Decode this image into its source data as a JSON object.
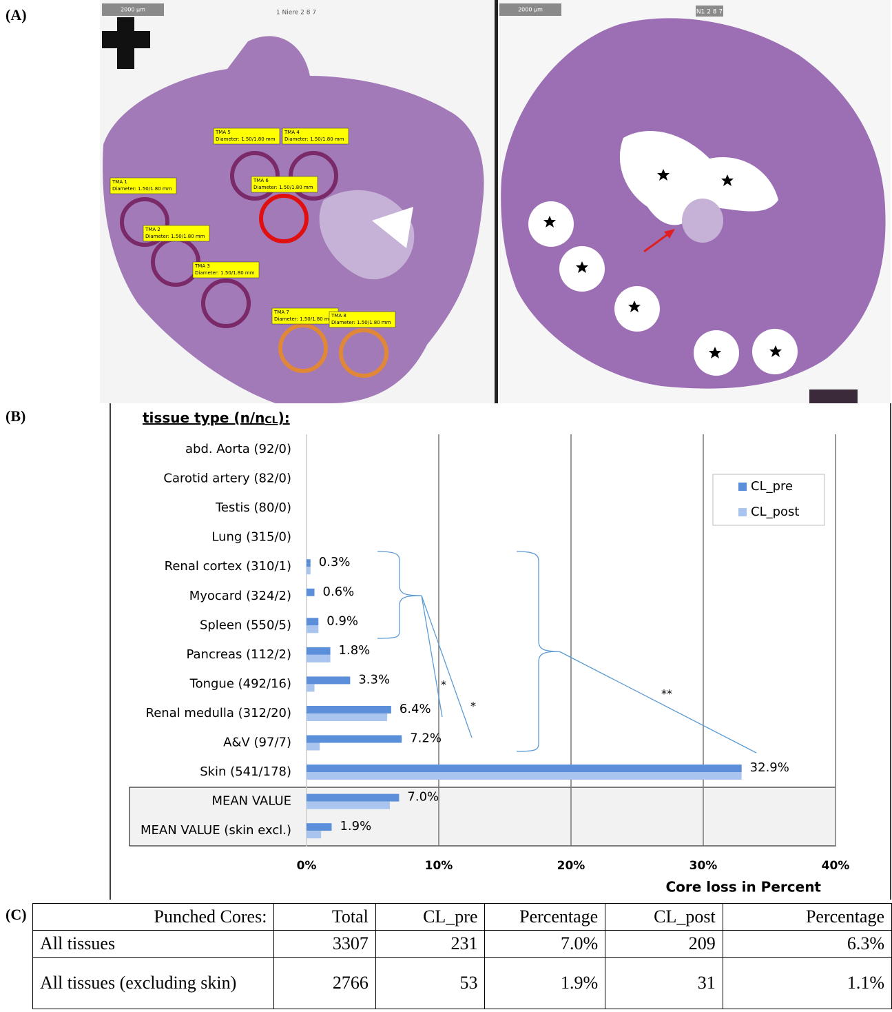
{
  "panel_a": {
    "label": "(A)",
    "left": {
      "scale": "2000 µm",
      "title": "1 Niere 2 8 7",
      "annotations": [
        {
          "title": "TMA 1",
          "text": "Diameter: 1.50/1.80 mm"
        },
        {
          "title": "TMA 2",
          "text": "Diameter: 1.50/1.80 mm"
        },
        {
          "title": "TMA 3",
          "text": "Diameter: 1.50/1.80 mm"
        },
        {
          "title": "TMA 4",
          "text": "Diameter: 1.50/1.80 mm"
        },
        {
          "title": "TMA 5",
          "text": "Diameter: 1.50/1.80 mm"
        },
        {
          "title": "TMA 6",
          "text": "Diameter: 1.50/1.80 mm"
        },
        {
          "title": "TMA 7",
          "text": "Diameter: 1.50/1.80 mm"
        },
        {
          "title": "TMA 8",
          "text": "Diameter: 1.50/1.80 mm"
        }
      ]
    },
    "right": {
      "scale": "2000 µm",
      "title": "N1 2 8 7"
    }
  },
  "panel_b": {
    "label": "(B)"
  },
  "chart_data": {
    "type": "bar",
    "orientation": "horizontal",
    "y_axis_title": {
      "text": "tissue type (n/n",
      "sub": "CL",
      "tail": "):"
    },
    "x_axis_title": "Core loss in Percent",
    "categories": [
      "abd. Aorta (92/0)",
      "Carotid artery (82/0)",
      "Testis (80/0)",
      "Lung (315/0)",
      "Renal cortex (310/1)",
      "Myocard (324/2)",
      "Spleen (550/5)",
      "Pancreas (112/2)",
      "Tongue (492/16)",
      "Renal medulla (312/20)",
      "A&V (97/7)",
      "Skin (541/178)",
      "MEAN VALUE",
      "MEAN VALUE (skin excl.)"
    ],
    "series": [
      {
        "name": "CL_pre",
        "color": "#5b8fd9",
        "values": [
          0,
          0,
          0,
          0,
          0.3,
          0.6,
          0.9,
          1.8,
          3.3,
          6.4,
          7.2,
          32.9,
          7.0,
          1.9
        ],
        "value_labels": [
          null,
          null,
          null,
          null,
          "0.3%",
          "0.6%",
          "0.9%",
          "1.8%",
          "3.3%",
          "6.4%",
          "7.2%",
          "32.9%",
          "7.0%",
          "1.9%"
        ]
      },
      {
        "name": "CL_post",
        "color": "#a9c4ee",
        "values": [
          0,
          0,
          0,
          0,
          0.3,
          0,
          0.9,
          1.8,
          0.6,
          6.1,
          1.0,
          32.9,
          6.3,
          1.1
        ]
      }
    ],
    "xlim": [
      0,
      40
    ],
    "xticks": [
      {
        "value": 0,
        "label": "0%"
      },
      {
        "value": 10,
        "label": "10%"
      },
      {
        "value": 20,
        "label": "20%"
      },
      {
        "value": 30,
        "label": "30%"
      },
      {
        "value": 40,
        "label": "40%"
      }
    ],
    "grid": true,
    "legend": "upper right",
    "annotations": [
      "*",
      "*",
      "**"
    ]
  },
  "panel_c": {
    "label": "(C)",
    "table": {
      "header": [
        "Punched Cores:",
        "Total",
        "CL_pre",
        "Percentage",
        "CL_post",
        "Percentage"
      ],
      "rows": [
        [
          "All tissues",
          3307,
          231,
          "7.0%",
          209,
          "6.3%"
        ],
        [
          "All tissues (excluding skin)",
          2766,
          53,
          "1.9%",
          31,
          "1.1%"
        ]
      ]
    }
  }
}
